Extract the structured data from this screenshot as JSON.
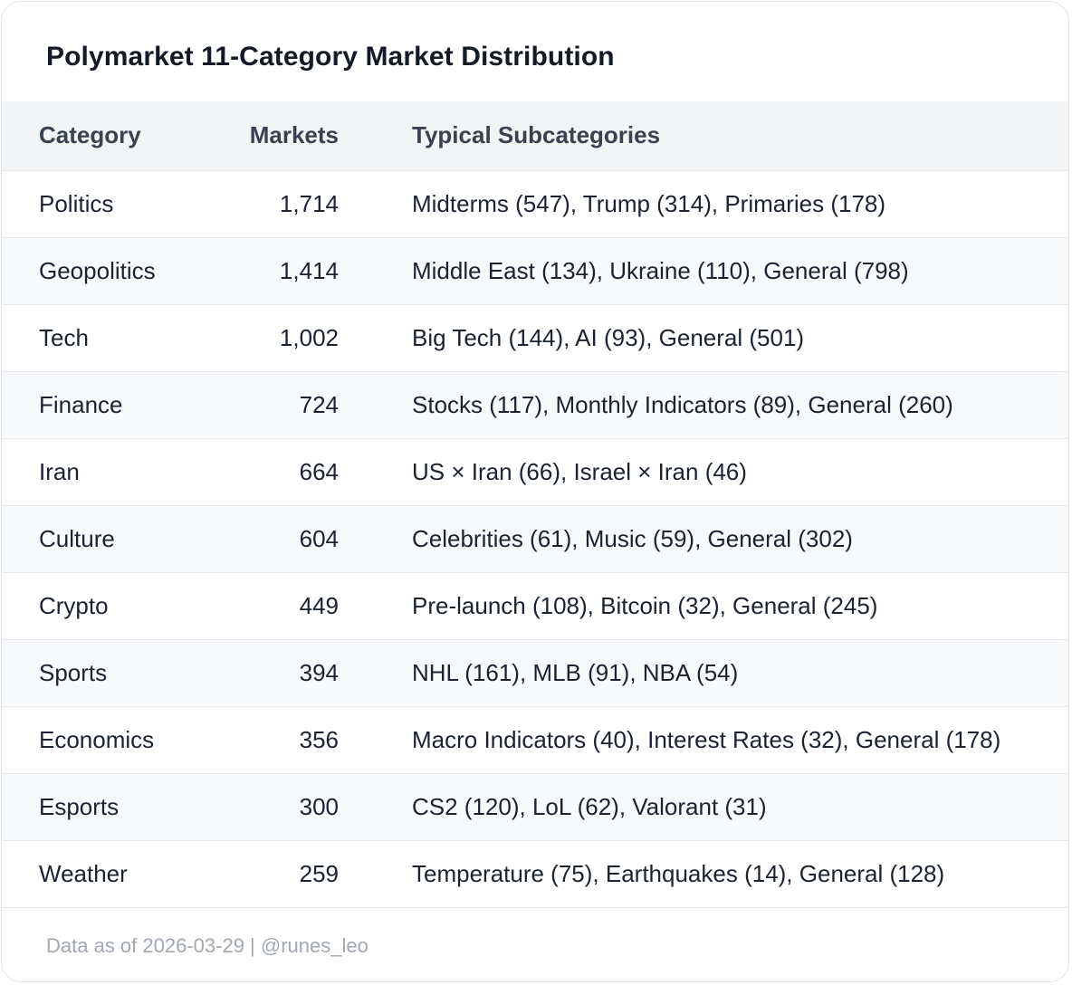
{
  "title": "Polymarket 11-Category Market Distribution",
  "table": {
    "headers": {
      "category": "Category",
      "markets": "Markets",
      "subcategories": "Typical Subcategories"
    },
    "rows": [
      {
        "category": "Politics",
        "markets": "1,714",
        "subcategories": "Midterms (547), Trump (314), Primaries (178)"
      },
      {
        "category": "Geopolitics",
        "markets": "1,414",
        "subcategories": "Middle East (134), Ukraine (110), General (798)"
      },
      {
        "category": "Tech",
        "markets": "1,002",
        "subcategories": "Big Tech (144), AI (93), General (501)"
      },
      {
        "category": "Finance",
        "markets": "724",
        "subcategories": "Stocks (117), Monthly Indicators (89), General (260)"
      },
      {
        "category": "Iran",
        "markets": "664",
        "subcategories": "US × Iran (66), Israel × Iran (46)"
      },
      {
        "category": "Culture",
        "markets": "604",
        "subcategories": "Celebrities (61), Music (59), General (302)"
      },
      {
        "category": "Crypto",
        "markets": "449",
        "subcategories": "Pre-launch (108), Bitcoin (32), General (245)"
      },
      {
        "category": "Sports",
        "markets": "394",
        "subcategories": "NHL (161), MLB (91), NBA (54)"
      },
      {
        "category": "Economics",
        "markets": "356",
        "subcategories": "Macro Indicators (40), Interest Rates (32), General (178)"
      },
      {
        "category": "Esports",
        "markets": "300",
        "subcategories": "CS2 (120), LoL (62), Valorant (31)"
      },
      {
        "category": "Weather",
        "markets": "259",
        "subcategories": "Temperature (75), Earthquakes (14), General (128)"
      }
    ]
  },
  "footer": "Data as of 2026-03-29 | @runes_leo"
}
